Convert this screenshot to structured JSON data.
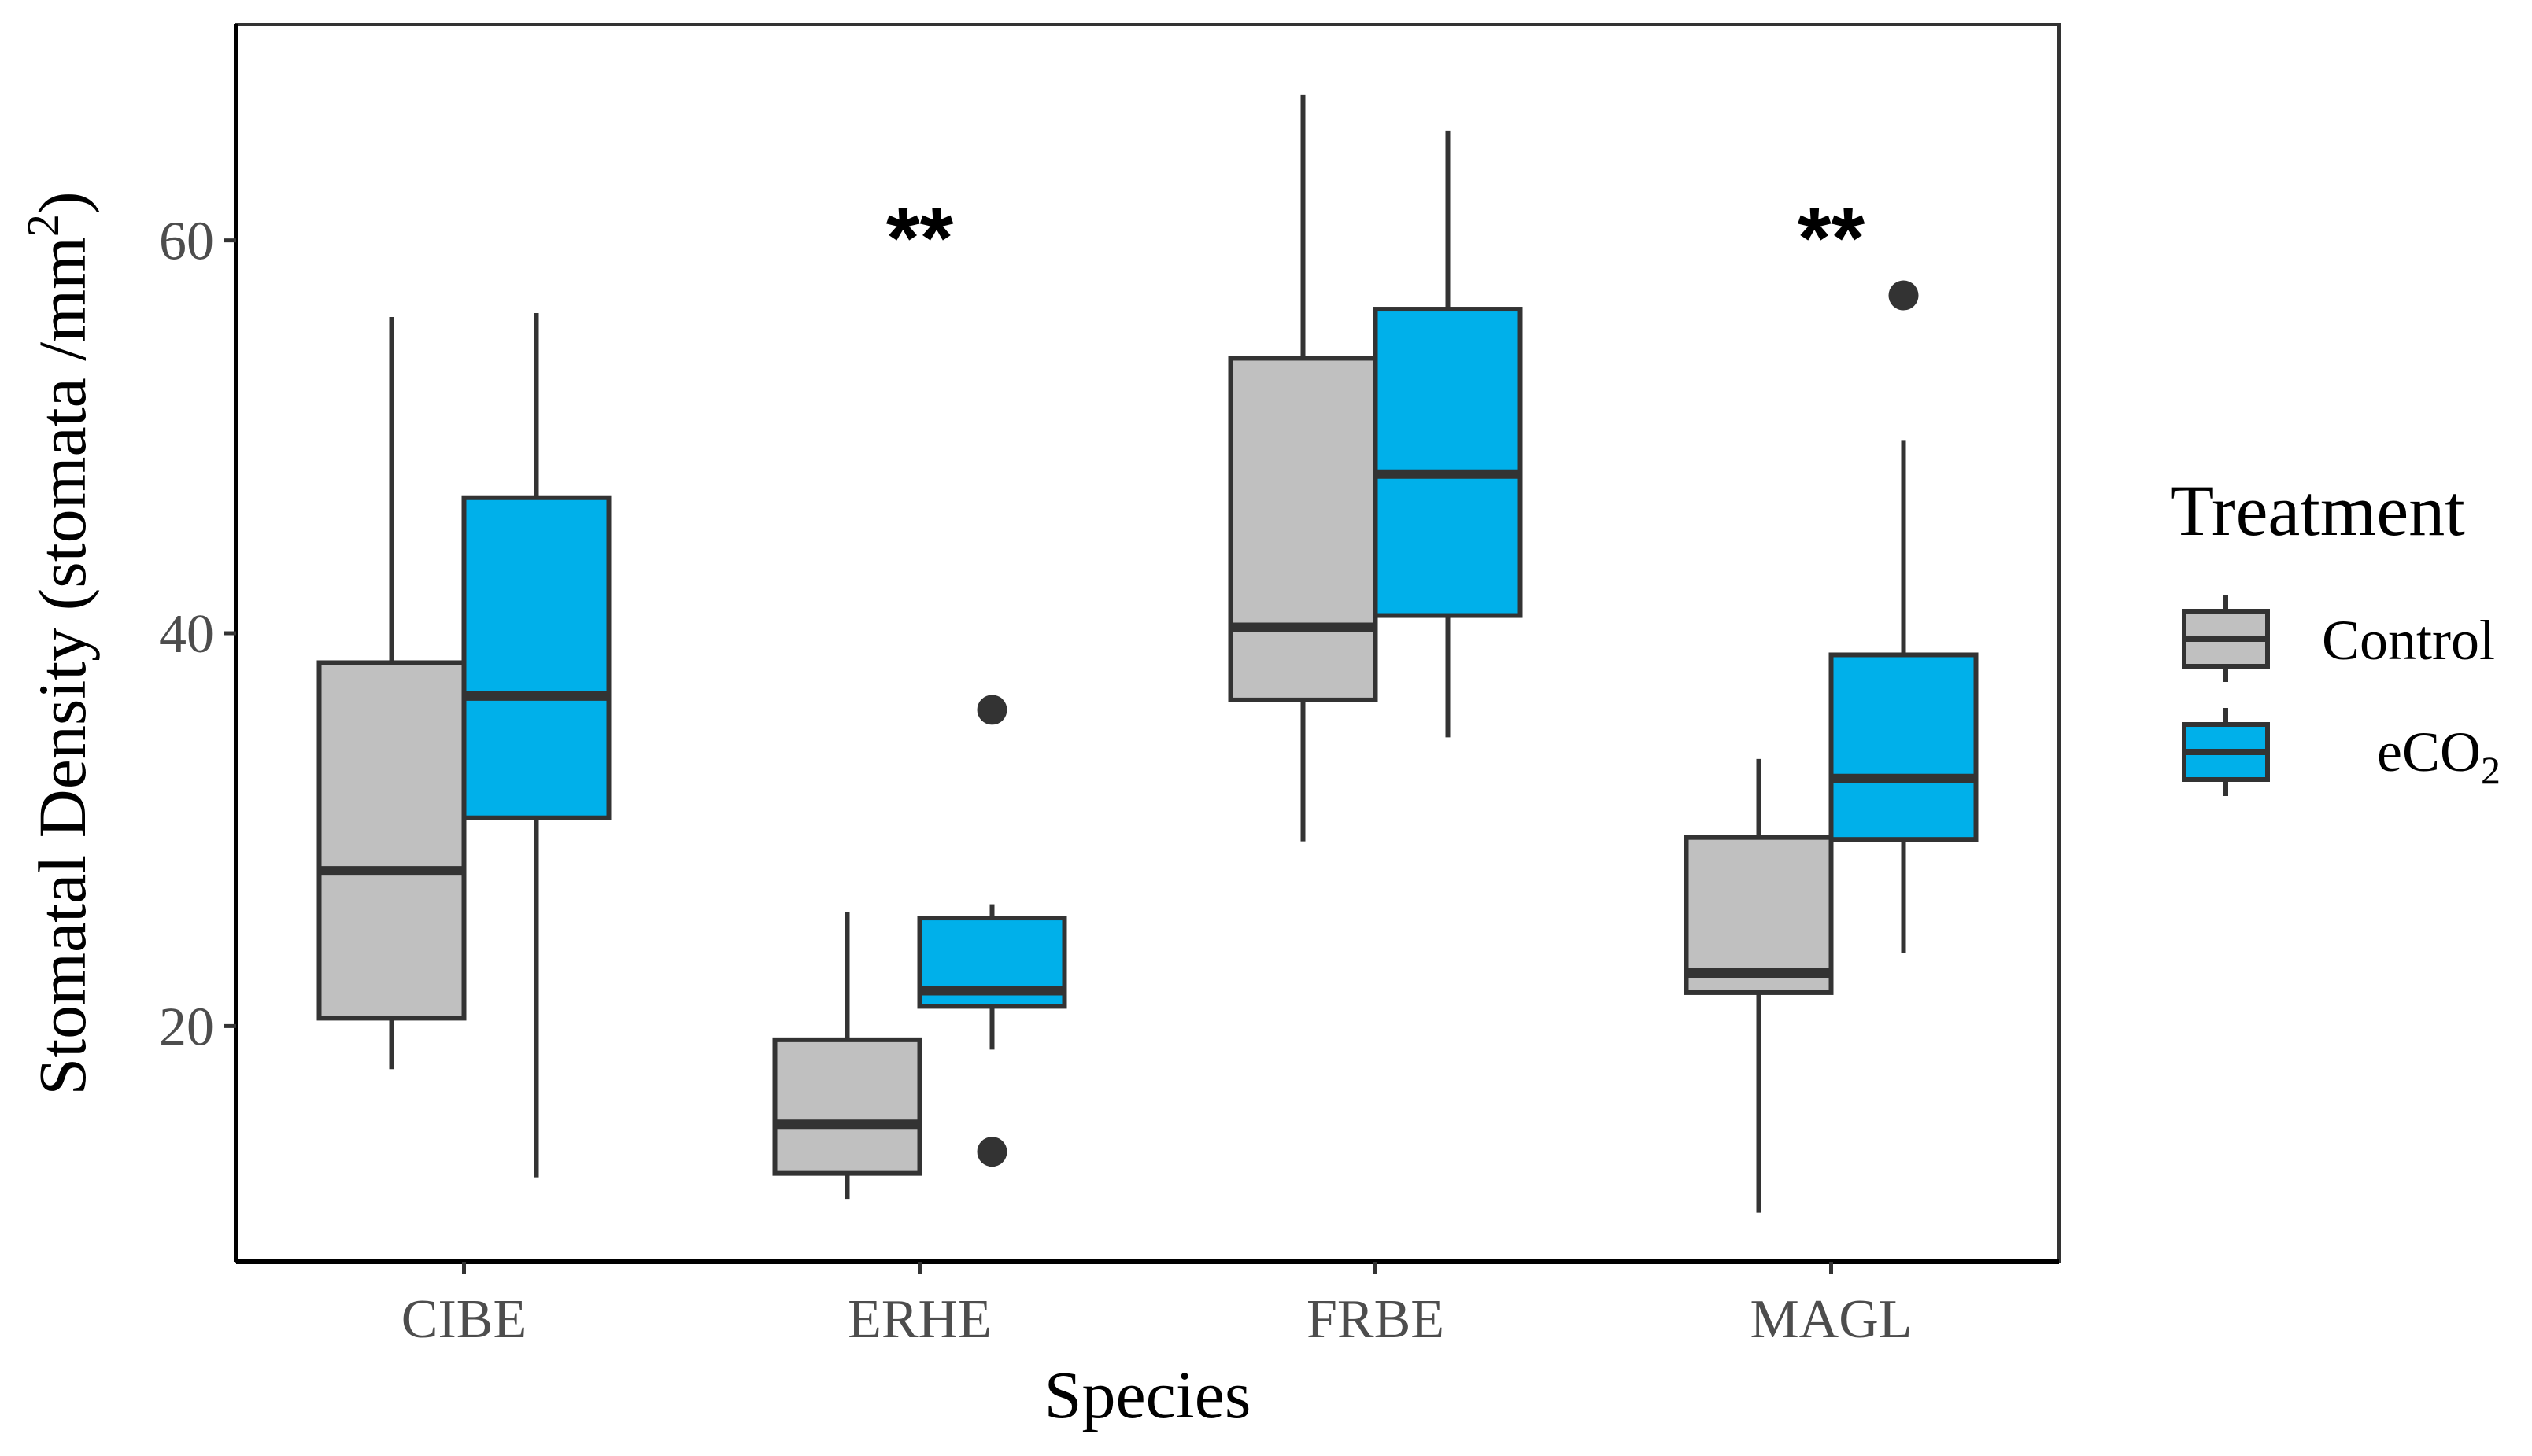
{
  "chart_data": {
    "type": "boxplot",
    "xlabel": "Species",
    "ylabel": "Stomatal Density (stomata  /mm",
    "ylabel_sup": "2",
    "ylabel_close": ")",
    "ylim": [
      8,
      71
    ],
    "yticks": [
      20,
      40,
      60
    ],
    "ytick_labels": [
      "20",
      "40",
      "60"
    ],
    "categories": [
      "CIBE",
      "ERHE",
      "FRBE",
      "MAGL"
    ],
    "legend": {
      "title": "Treatment",
      "position": "right",
      "entries": [
        {
          "label": "Control",
          "sub": ""
        },
        {
          "label": "eCO",
          "sub": "2"
        }
      ]
    },
    "colors": {
      "Control": "#c0c0c0",
      "eCO2": "#00b0ea",
      "stroke": "#333333"
    },
    "series": [
      {
        "name": "Control",
        "boxes": [
          {
            "min": 17.8,
            "q1": 20.4,
            "median": 27.9,
            "q3": 38.5,
            "max": 56.1,
            "outliers": []
          },
          {
            "min": 11.2,
            "q1": 12.5,
            "median": 15.0,
            "q3": 19.3,
            "max": 25.8,
            "outliers": []
          },
          {
            "min": 29.4,
            "q1": 36.6,
            "median": 40.3,
            "q3": 54.0,
            "max": 67.4,
            "outliers": []
          },
          {
            "min": 10.5,
            "q1": 21.7,
            "median": 22.7,
            "q3": 29.6,
            "max": 33.6,
            "outliers": []
          }
        ]
      },
      {
        "name": "eCO2",
        "boxes": [
          {
            "min": 12.3,
            "q1": 30.6,
            "median": 36.8,
            "q3": 46.9,
            "max": 56.3,
            "outliers": []
          },
          {
            "min": 18.8,
            "q1": 21.0,
            "median": 21.8,
            "q3": 25.5,
            "max": 26.2,
            "outliers": [
              36.1,
              13.6
            ]
          },
          {
            "min": 34.7,
            "q1": 40.9,
            "median": 48.1,
            "q3": 56.5,
            "max": 65.6,
            "outliers": []
          },
          {
            "min": 23.7,
            "q1": 29.5,
            "median": 32.6,
            "q3": 38.9,
            "max": 49.8,
            "outliers": [
              57.2
            ]
          }
        ]
      }
    ],
    "annotations": [
      {
        "category": "ERHE",
        "text": "**",
        "y": 60.2
      },
      {
        "category": "MAGL",
        "text": "**",
        "y": 60.2
      }
    ]
  }
}
